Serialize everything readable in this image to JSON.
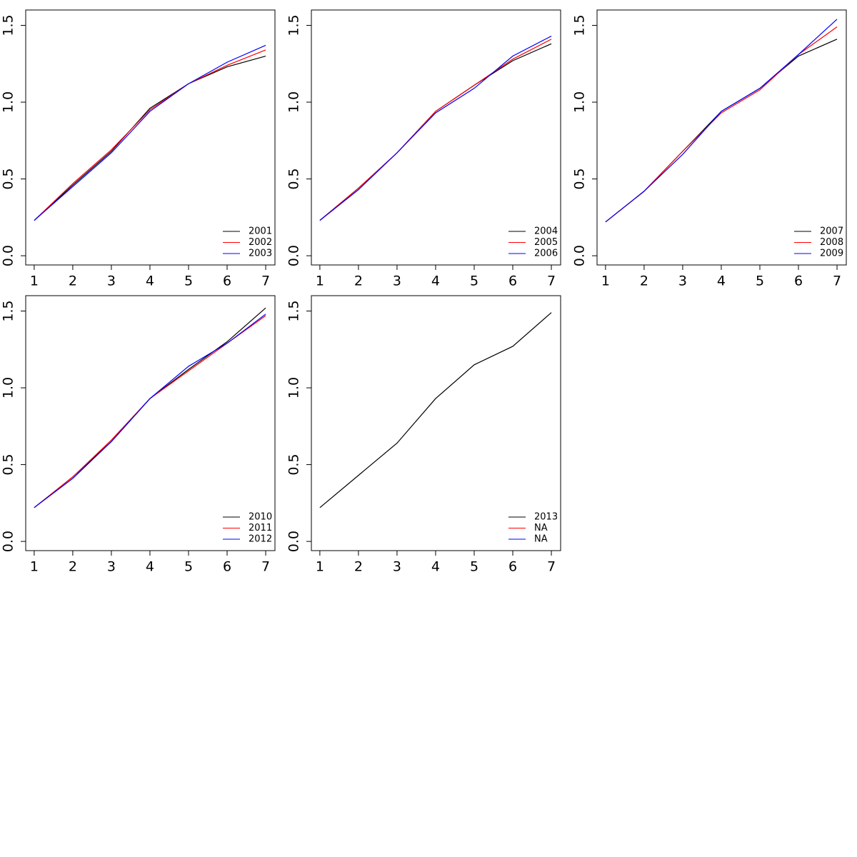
{
  "chart_data": [
    {
      "type": "line",
      "x": [
        1,
        2,
        3,
        4,
        5,
        6,
        7
      ],
      "xlim": [
        0.78,
        7.24
      ],
      "ylim": [
        -0.06,
        1.6
      ],
      "xticks": [
        1,
        2,
        3,
        4,
        5,
        6,
        7
      ],
      "yticks": [
        {
          "value": 0,
          "label": "0.0"
        },
        0.5,
        {
          "value": 1,
          "label": "1.0"
        },
        1.5
      ],
      "legend": "bottom-right",
      "series": [
        {
          "name": "2001",
          "color": "#000000",
          "values": [
            0.23,
            0.46,
            0.68,
            0.96,
            1.12,
            1.23,
            1.3
          ]
        },
        {
          "name": "2002",
          "color": "#ff0000",
          "values": [
            0.23,
            0.47,
            0.69,
            0.95,
            1.12,
            1.24,
            1.34
          ]
        },
        {
          "name": "2003",
          "color": "#0000ff",
          "values": [
            0.23,
            0.45,
            0.67,
            0.94,
            1.12,
            1.26,
            1.37
          ]
        }
      ]
    },
    {
      "type": "line",
      "x": [
        1,
        2,
        3,
        4,
        5,
        6,
        7
      ],
      "xlim": [
        0.78,
        7.24
      ],
      "ylim": [
        -0.06,
        1.6
      ],
      "xticks": [
        1,
        2,
        3,
        4,
        5,
        6,
        7
      ],
      "yticks": [
        {
          "value": 0,
          "label": "0.0"
        },
        0.5,
        {
          "value": 1,
          "label": "1.0"
        },
        1.5
      ],
      "legend": "bottom-right",
      "series": [
        {
          "name": "2004",
          "color": "#000000",
          "values": [
            0.23,
            0.44,
            0.67,
            0.94,
            1.11,
            1.27,
            1.38
          ]
        },
        {
          "name": "2005",
          "color": "#ff0000",
          "values": [
            0.23,
            0.44,
            0.67,
            0.94,
            1.11,
            1.28,
            1.41
          ]
        },
        {
          "name": "2006",
          "color": "#0000ff",
          "values": [
            0.23,
            0.43,
            0.67,
            0.93,
            1.09,
            1.3,
            1.43
          ]
        }
      ]
    },
    {
      "type": "line",
      "x": [
        1,
        2,
        3,
        4,
        5,
        6,
        7
      ],
      "xlim": [
        0.78,
        7.24
      ],
      "ylim": [
        -0.06,
        1.6
      ],
      "xticks": [
        1,
        2,
        3,
        4,
        5,
        6,
        7
      ],
      "yticks": [
        {
          "value": 0,
          "label": "0.0"
        },
        0.5,
        {
          "value": 1,
          "label": "1.0"
        },
        1.5
      ],
      "legend": "bottom-right",
      "series": [
        {
          "name": "2007",
          "color": "#000000",
          "values": [
            0.22,
            0.42,
            0.68,
            0.94,
            1.09,
            1.3,
            1.41
          ]
        },
        {
          "name": "2008",
          "color": "#ff0000",
          "values": [
            0.22,
            0.42,
            0.68,
            0.93,
            1.08,
            1.31,
            1.49
          ]
        },
        {
          "name": "2009",
          "color": "#0000ff",
          "values": [
            0.22,
            0.42,
            0.66,
            0.94,
            1.09,
            1.31,
            1.54
          ]
        }
      ]
    },
    {
      "type": "line",
      "x": [
        1,
        2,
        3,
        4,
        5,
        6,
        7
      ],
      "xlim": [
        0.78,
        7.24
      ],
      "ylim": [
        -0.06,
        1.6
      ],
      "xticks": [
        1,
        2,
        3,
        4,
        5,
        6,
        7
      ],
      "yticks": [
        {
          "value": 0,
          "label": "0.0"
        },
        0.5,
        {
          "value": 1,
          "label": "1.0"
        },
        1.5
      ],
      "legend": "bottom-right",
      "series": [
        {
          "name": "2010",
          "color": "#000000",
          "values": [
            0.22,
            0.42,
            0.65,
            0.93,
            1.12,
            1.3,
            1.52
          ]
        },
        {
          "name": "2011",
          "color": "#ff0000",
          "values": [
            0.22,
            0.42,
            0.66,
            0.93,
            1.11,
            1.29,
            1.47
          ]
        },
        {
          "name": "2012",
          "color": "#0000ff",
          "values": [
            0.22,
            0.41,
            0.65,
            0.93,
            1.14,
            1.29,
            1.48
          ]
        }
      ]
    },
    {
      "type": "line",
      "x": [
        1,
        2,
        3,
        4,
        5,
        6,
        7
      ],
      "xlim": [
        0.78,
        7.24
      ],
      "ylim": [
        -0.06,
        1.6
      ],
      "xticks": [
        1,
        2,
        3,
        4,
        5,
        6,
        7
      ],
      "yticks": [
        {
          "value": 0,
          "label": "0.0"
        },
        0.5,
        {
          "value": 1,
          "label": "1.0"
        },
        1.5
      ],
      "legend": "bottom-right",
      "series": [
        {
          "name": "2013",
          "color": "#000000",
          "values": [
            0.22,
            0.43,
            0.64,
            0.93,
            1.15,
            1.27,
            1.49
          ]
        },
        {
          "name": "NA",
          "color": "#ff0000",
          "values": [
            null,
            null,
            null,
            null,
            null,
            null,
            null
          ]
        },
        {
          "name": "NA",
          "color": "#0000ff",
          "values": [
            null,
            null,
            null,
            null,
            null,
            null,
            null
          ]
        }
      ]
    }
  ]
}
